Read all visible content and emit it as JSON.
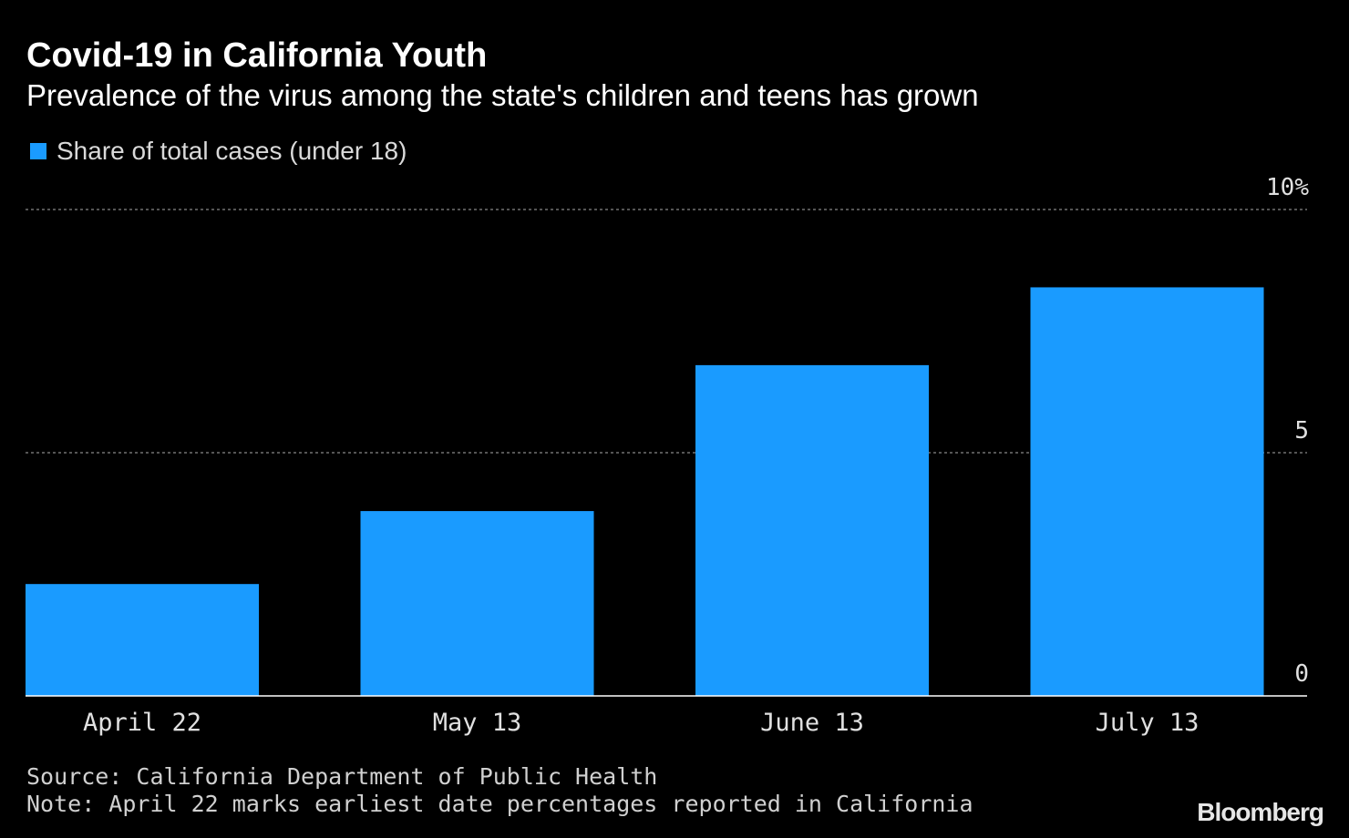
{
  "title": "Covid-19 in California Youth",
  "subtitle": "Prevalence of the virus among the state's children and teens has grown",
  "legend": {
    "label": "Share of total cases (under 18)",
    "color": "#1a9bff"
  },
  "source": "Source: California Department of Public Health",
  "note": "Note: April 22 marks earliest date percentages reported in California",
  "brand": "Bloomberg",
  "colors": {
    "background": "#000000",
    "bar": "#1a9bff",
    "grid": "#888888",
    "axis": "#ffffff",
    "text": "#ffffff"
  },
  "chart_data": {
    "type": "bar",
    "categories": [
      "April 22",
      "May 13",
      "June 13",
      "July 13"
    ],
    "series": [
      {
        "name": "Share of total cases (under 18)",
        "values": [
          2.3,
          3.8,
          6.8,
          8.4
        ]
      }
    ],
    "ylim": [
      0,
      10
    ],
    "yticks": [
      0,
      5,
      10
    ],
    "ytick_labels": [
      "0",
      "5",
      "10%"
    ],
    "y_axis_side": "right",
    "grid": true,
    "legend_position": "top-left"
  }
}
